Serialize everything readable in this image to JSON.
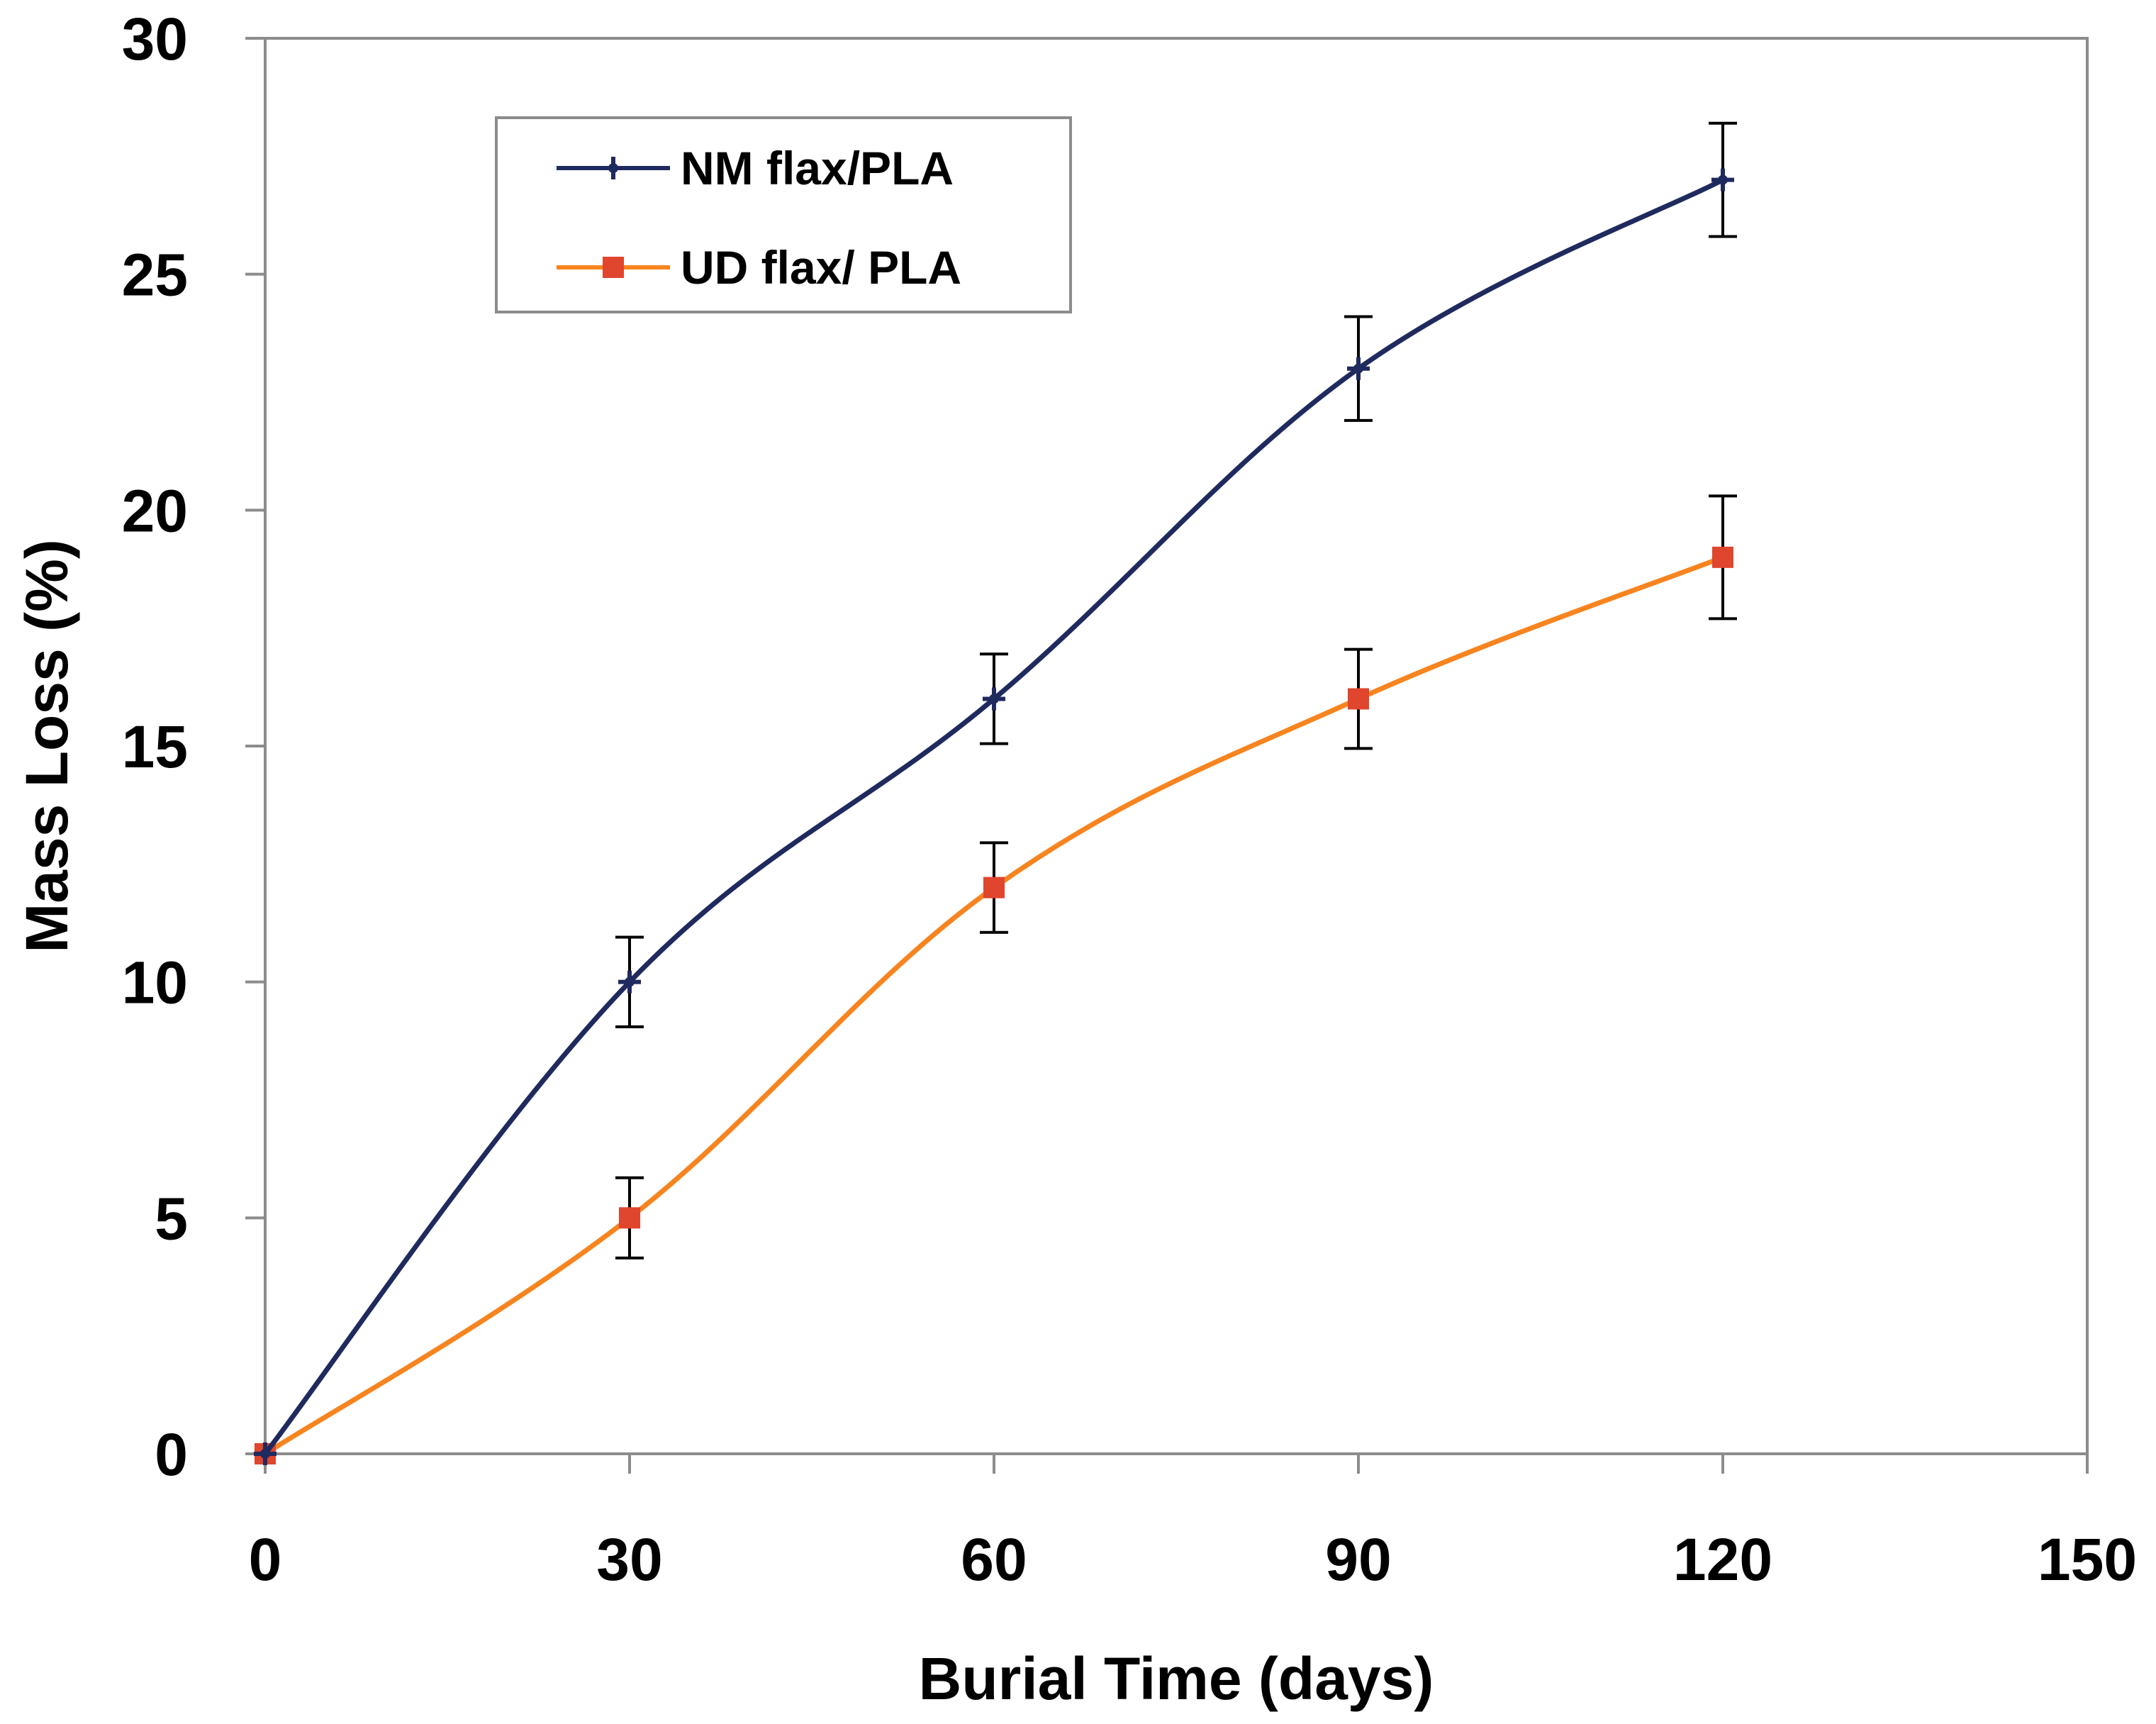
{
  "chart_data": {
    "type": "line",
    "title": "",
    "xlabel": "Burial Time (days)",
    "ylabel": "Mass Loss (%)",
    "xlim": [
      0,
      150
    ],
    "ylim": [
      0,
      30
    ],
    "xticks": [
      0,
      30,
      60,
      90,
      120,
      150
    ],
    "yticks": [
      0,
      5,
      10,
      15,
      20,
      25,
      30
    ],
    "grid": false,
    "legend_position": "top-left",
    "x": [
      0,
      30,
      60,
      90,
      120
    ],
    "series": [
      {
        "name": "NM flax/PLA",
        "color": "#1f2a5e",
        "marker": "plus",
        "values": [
          0,
          10,
          16,
          23,
          27
        ],
        "errors": [
          0,
          0.95,
          0.95,
          1.1,
          1.2
        ]
      },
      {
        "name": "UD flax/ PLA",
        "color": "#f7841f",
        "marker_color": "#e0452e",
        "marker": "square",
        "values": [
          0,
          5,
          12,
          16,
          19
        ],
        "errors": [
          0,
          0.85,
          0.95,
          1.05,
          1.3
        ]
      }
    ]
  }
}
